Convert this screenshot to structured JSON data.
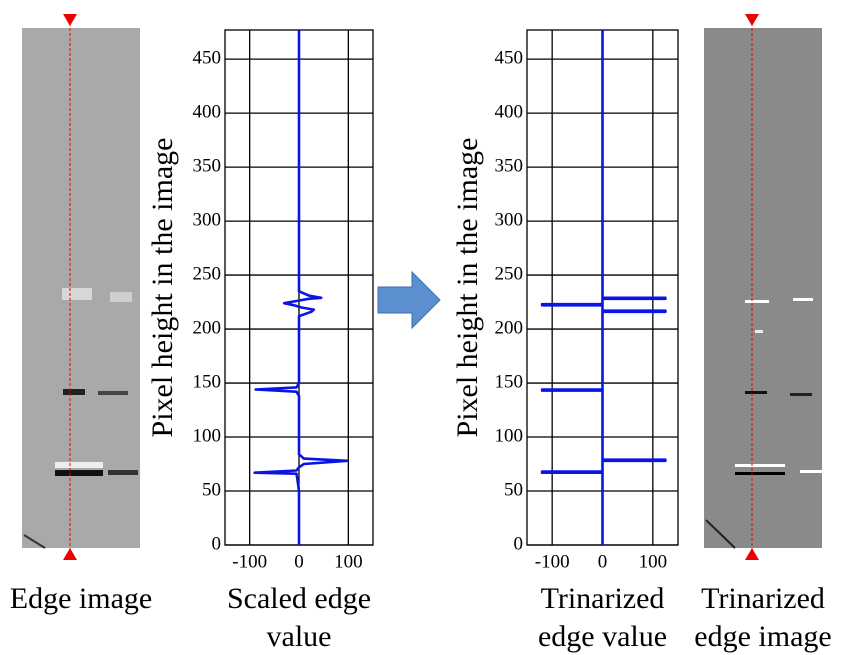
{
  "chart_data": [
    {
      "type": "line",
      "ylabel": "Pixel height in the image",
      "xlabel": [
        "Scaled edge",
        "value"
      ],
      "xlim": [
        -150,
        150
      ],
      "ylim": [
        0,
        477
      ],
      "xticks": [
        -100,
        0,
        100
      ],
      "yticks": [
        0,
        50,
        100,
        150,
        200,
        250,
        300,
        350,
        400,
        450
      ],
      "grid": true,
      "color": "#0a14e6",
      "y": [
        0,
        50,
        60,
        66,
        67,
        69,
        72,
        75,
        78,
        80,
        84,
        100,
        138,
        142,
        144,
        146,
        150,
        200,
        212,
        216,
        218,
        220,
        222,
        224,
        226,
        228,
        229,
        231,
        235,
        300,
        400,
        477
      ],
      "values": [
        0,
        0,
        -3,
        -5,
        -90,
        -5,
        0,
        10,
        98,
        10,
        0,
        0,
        0,
        -5,
        -88,
        -5,
        0,
        0,
        0,
        25,
        30,
        5,
        -10,
        -30,
        -5,
        20,
        45,
        20,
        0,
        0,
        0,
        0
      ]
    },
    {
      "type": "line",
      "ylabel": "Pixel height in the image",
      "xlabel": [
        "Trinarized",
        "edge value"
      ],
      "xlim": [
        -150,
        150
      ],
      "ylim": [
        0,
        477
      ],
      "xticks": [
        -100,
        0,
        100
      ],
      "yticks": [
        0,
        50,
        100,
        150,
        200,
        250,
        300,
        350,
        400,
        450
      ],
      "grid": true,
      "color": "#0a14e6",
      "y": [
        0,
        67,
        67,
        68,
        68,
        78,
        78,
        79,
        79,
        143,
        143,
        144,
        144,
        216,
        216,
        217,
        217,
        222,
        222,
        223,
        223,
        228,
        228,
        229,
        229,
        477
      ],
      "values": [
        0,
        0,
        -120,
        -120,
        0,
        0,
        125,
        125,
        0,
        0,
        -120,
        -120,
        0,
        0,
        125,
        125,
        0,
        0,
        -120,
        -120,
        0,
        0,
        125,
        125,
        0,
        0
      ]
    }
  ],
  "images": [
    {
      "caption": [
        "Edge image"
      ]
    },
    {
      "caption": [
        "Trinarized",
        "edge image"
      ]
    }
  ]
}
